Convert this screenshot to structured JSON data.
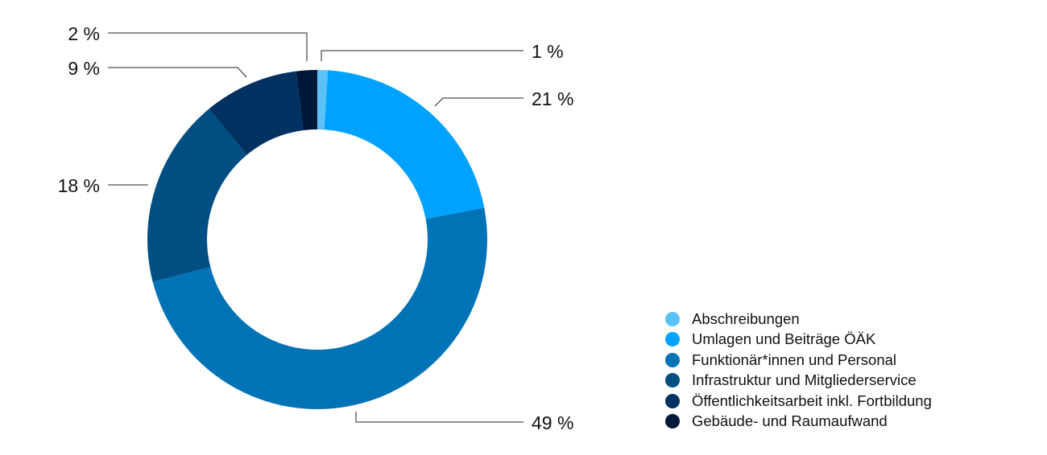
{
  "chart_data": {
    "type": "pie",
    "donut": true,
    "categories": [
      "Abschreibungen",
      "Umlagen und Beiträge ÖÄK",
      "Funktionär*innen und Personal",
      "Infrastruktur und Mitgliederservice",
      "Öffentlichkeitsarbeit inkl. Fortbildung",
      "Gebäude- und Raumaufwand"
    ],
    "values": [
      1,
      21,
      49,
      18,
      9,
      2
    ],
    "labels": [
      "1 %",
      "21 %",
      "49 %",
      "18 %",
      "9 %",
      "2 %"
    ],
    "colors": [
      "#5ac2f7",
      "#00a2ff",
      "#0073b7",
      "#004e82",
      "#003161",
      "#00173a"
    ],
    "legend_position": "bottom-right"
  }
}
